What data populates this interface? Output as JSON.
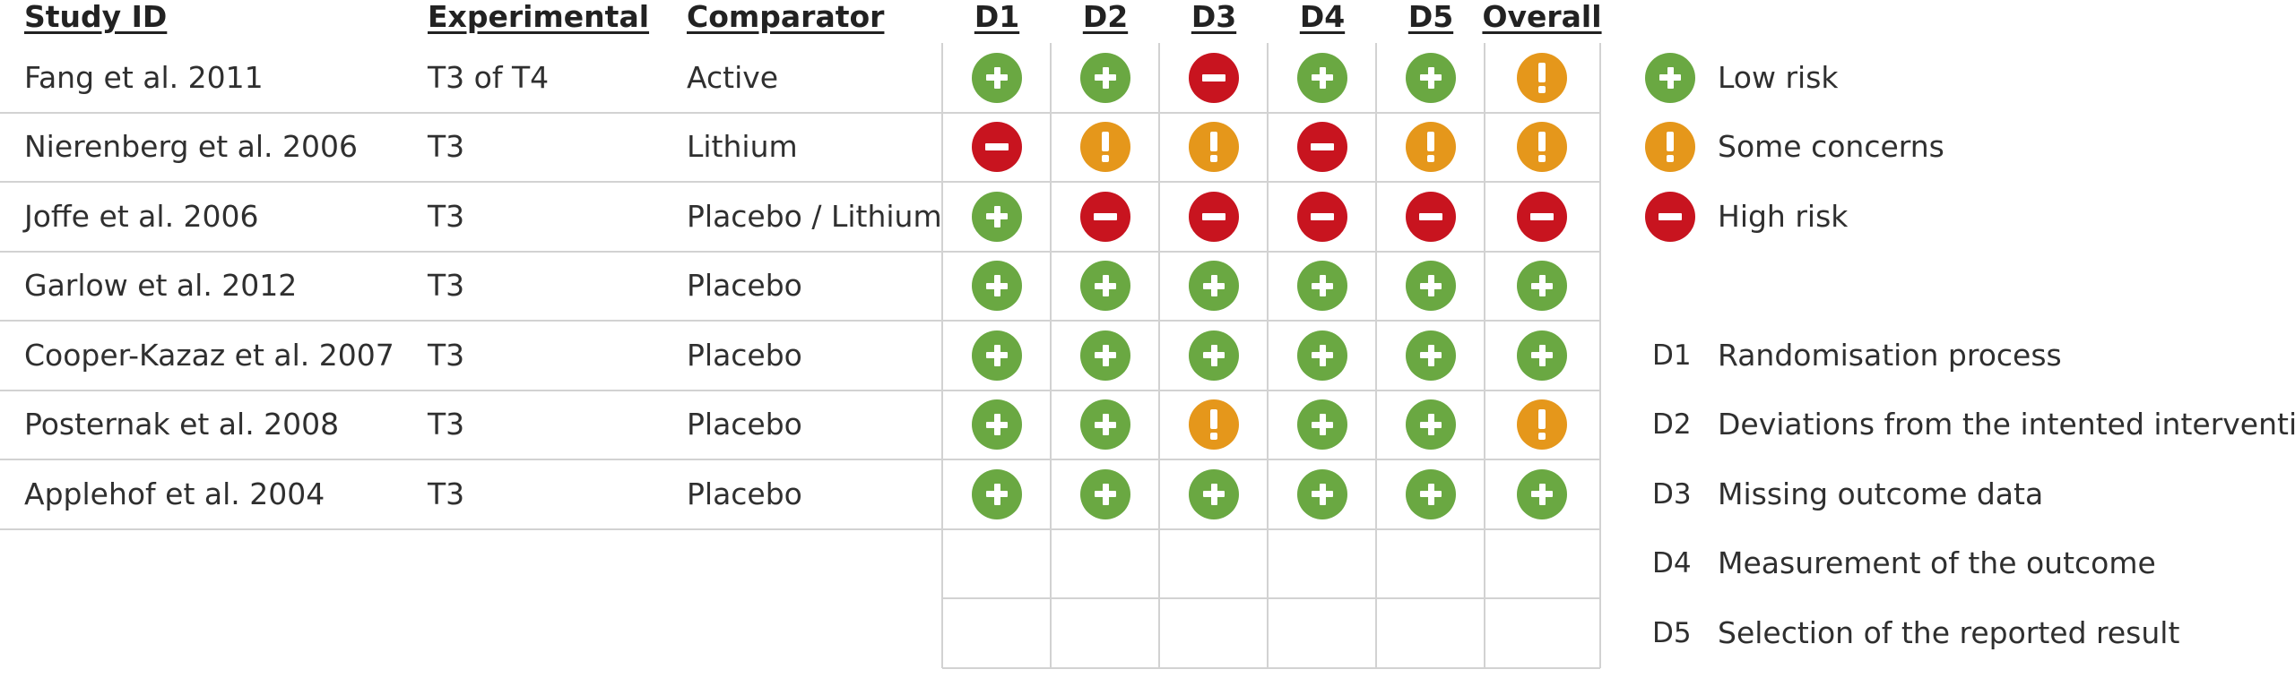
{
  "headers": {
    "study": "Study ID",
    "experimental": "Experimental",
    "comparator": "Comparator",
    "domains": [
      "D1",
      "D2",
      "D3",
      "D4",
      "D5"
    ],
    "overall": "Overall"
  },
  "studies": [
    {
      "study": "Fang et al. 2011",
      "experimental": "T3 of T4",
      "comparator": "Active",
      "judgements": [
        "low",
        "low",
        "high",
        "low",
        "low"
      ],
      "overall": "some"
    },
    {
      "study": "Nierenberg et al. 2006",
      "experimental": "T3",
      "comparator": "Lithium",
      "judgements": [
        "high",
        "some",
        "some",
        "high",
        "some"
      ],
      "overall": "some"
    },
    {
      "study": "Joffe et al. 2006",
      "experimental": "T3",
      "comparator": "Placebo / Lithium",
      "judgements": [
        "low",
        "high",
        "high",
        "high",
        "high"
      ],
      "overall": "high"
    },
    {
      "study": "Garlow et al. 2012",
      "experimental": "T3",
      "comparator": "Placebo",
      "judgements": [
        "low",
        "low",
        "low",
        "low",
        "low"
      ],
      "overall": "low"
    },
    {
      "study": "Cooper-Kazaz et al. 2007",
      "experimental": "T3",
      "comparator": "Placebo",
      "judgements": [
        "low",
        "low",
        "low",
        "low",
        "low"
      ],
      "overall": "low"
    },
    {
      "study": "Posternak et al. 2008",
      "experimental": "T3",
      "comparator": "Placebo",
      "judgements": [
        "low",
        "low",
        "some",
        "low",
        "low"
      ],
      "overall": "some"
    },
    {
      "study": "Applehof et al. 2004",
      "experimental": "T3",
      "comparator": "Placebo",
      "judgements": [
        "low",
        "low",
        "low",
        "low",
        "low"
      ],
      "overall": "low"
    }
  ],
  "empty_rows": 2,
  "legend": {
    "judgements": [
      {
        "level": "low",
        "label": "Low risk"
      },
      {
        "level": "some",
        "label": "Some concerns"
      },
      {
        "level": "high",
        "label": "High risk"
      }
    ],
    "domains": [
      {
        "code": "D1",
        "label": "Randomisation process"
      },
      {
        "code": "D2",
        "label": "Deviations from the intented interventions"
      },
      {
        "code": "D3",
        "label": "Missing outcome data"
      },
      {
        "code": "D4",
        "label": "Measurement of the outcome"
      },
      {
        "code": "D5",
        "label": "Selection of the reported result"
      }
    ]
  },
  "colors": {
    "low": "#6aa842",
    "some": "#e5971b",
    "high": "#c8141f",
    "grid": "#d2d2d2"
  }
}
